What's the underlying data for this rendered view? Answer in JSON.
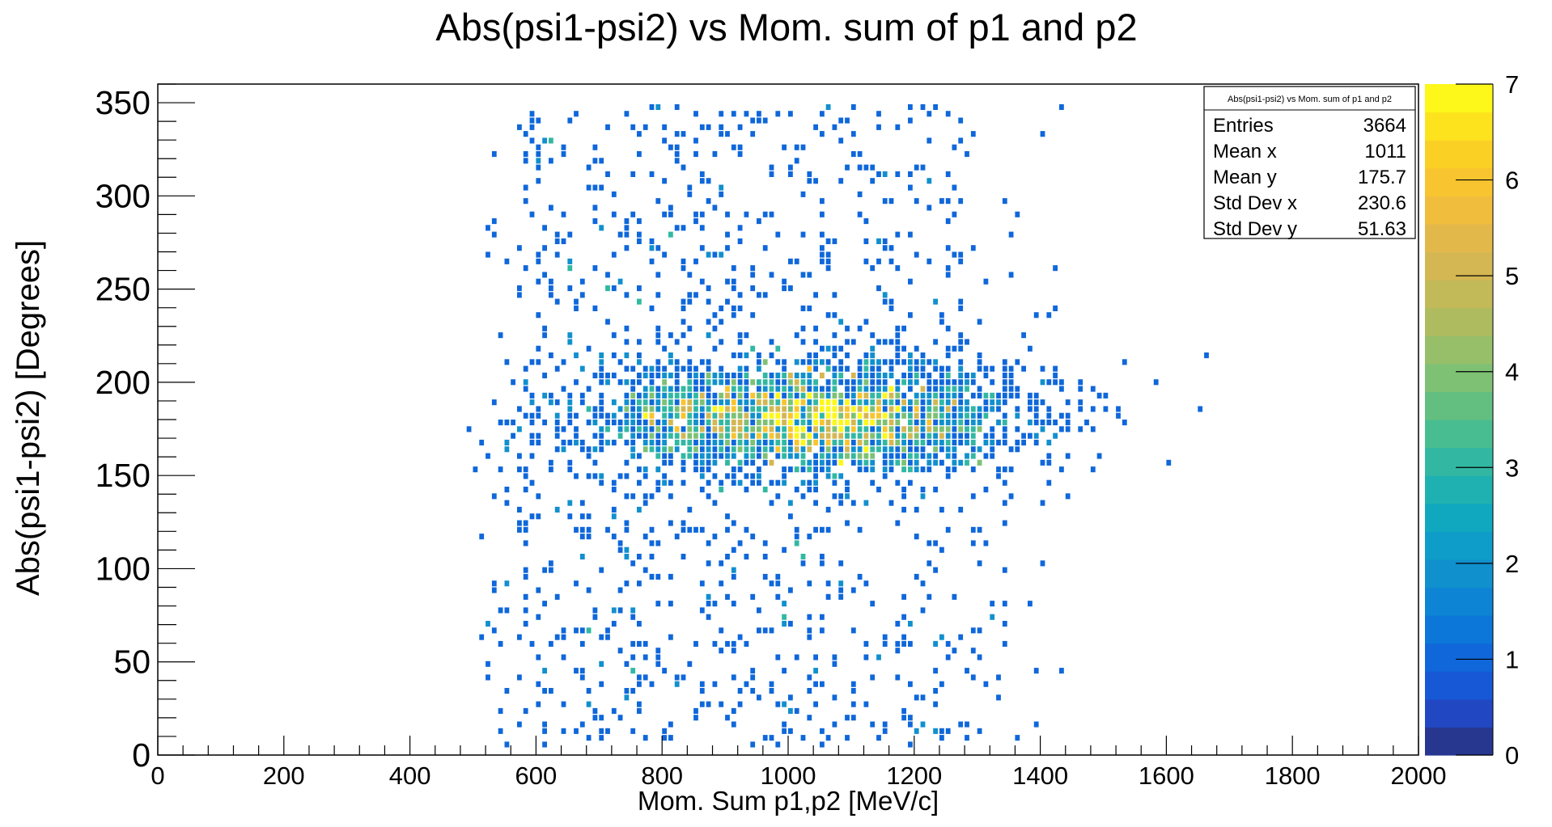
{
  "chart_data": {
    "type": "heatmap",
    "title": "Abs(psi1-psi2) vs Mom. sum of p1 and p2",
    "xlabel": "Mom. Sum p1,p2 [MeV/c]",
    "ylabel": "Abs(psi1-psi2) [Degrees]",
    "xlim": [
      0,
      2000
    ],
    "ylim": [
      0,
      360
    ],
    "zlim": [
      0,
      7
    ],
    "x_ticks": [
      "0",
      "200",
      "400",
      "600",
      "800",
      "1000",
      "1200",
      "1400",
      "1600",
      "1800",
      "2000"
    ],
    "y_ticks": [
      "0",
      "50",
      "100",
      "150",
      "200",
      "250",
      "300",
      "350"
    ],
    "z_ticks": [
      "0",
      "1",
      "2",
      "3",
      "4",
      "5",
      "6",
      "7"
    ],
    "palette": [
      "#27368f",
      "#2148c2",
      "#1658d6",
      "#0f67da",
      "#0c77d9",
      "#0e84d4",
      "#1190ce",
      "#0e9cc8",
      "#10a8bf",
      "#1fb1b1",
      "#32b8a2",
      "#48bd91",
      "#63bf80",
      "#7ec174",
      "#97bf69",
      "#aebc5f",
      "#c2b959",
      "#d4b753",
      "#e3b84b",
      "#f0bd3d",
      "#f8c42f",
      "#fbd025",
      "#fde31e",
      "#fdf71a"
    ],
    "grid": false,
    "stats": {
      "title": "Abs(psi1-psi2) vs Mom. sum of p1 and p2",
      "rows": [
        {
          "label": "Entries",
          "value": "3664"
        },
        {
          "label": "Mean x",
          "value": "1011"
        },
        {
          "label": "Mean y",
          "value": "175.7"
        },
        {
          "label": "Std Dev x",
          "value": "230.6"
        },
        {
          "label": "Std Dev y",
          "value": "51.63"
        }
      ]
    }
  }
}
